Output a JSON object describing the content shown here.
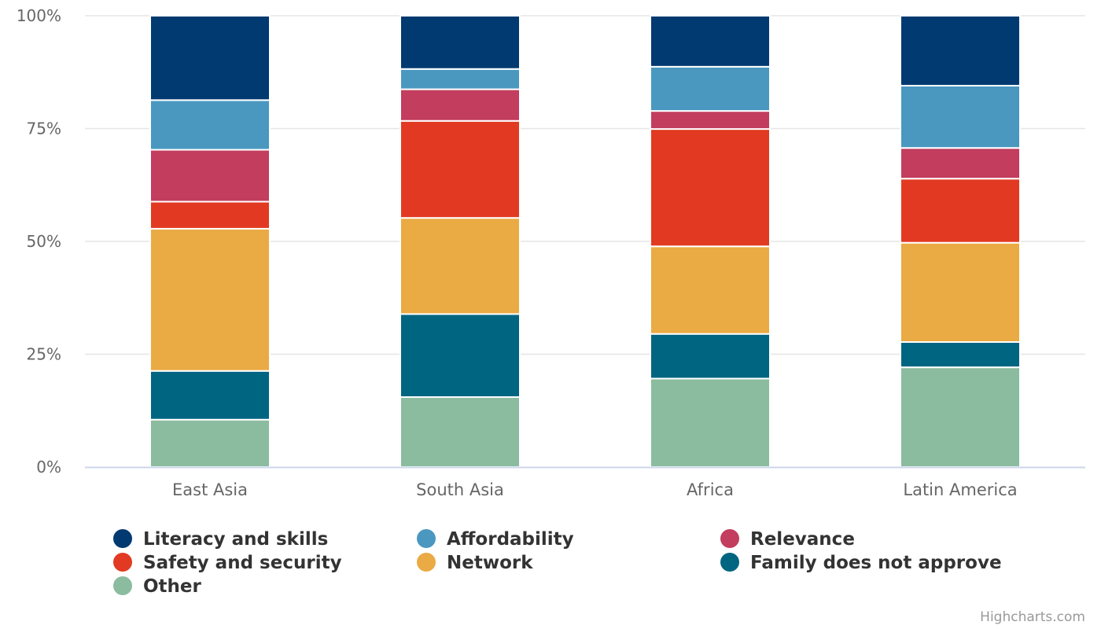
{
  "chart_data": {
    "type": "bar",
    "stacking": "percent",
    "title": "",
    "xlabel": "",
    "ylabel": "",
    "ylim": [
      0,
      100
    ],
    "yticks": [
      "0%",
      "25%",
      "50%",
      "75%",
      "100%"
    ],
    "grid": true,
    "legend_position": "bottom",
    "categories": [
      "East Asia",
      "South Asia",
      "Africa",
      "Latin America"
    ],
    "series": [
      {
        "name": "Literacy and skills",
        "color": "#003a70",
        "values": [
          18.7,
          11.8,
          11.3,
          15.5
        ]
      },
      {
        "name": "Affordability",
        "color": "#4a98c0",
        "values": [
          11.0,
          4.5,
          9.8,
          13.8
        ]
      },
      {
        "name": "Relevance",
        "color": "#c23d5e",
        "values": [
          11.5,
          7.0,
          4.0,
          6.8
        ]
      },
      {
        "name": "Safety and security",
        "color": "#e23a22",
        "values": [
          6.0,
          21.5,
          26.0,
          14.2
        ]
      },
      {
        "name": "Network",
        "color": "#eaaa44",
        "values": [
          31.5,
          21.3,
          19.4,
          22.0
        ]
      },
      {
        "name": "Family does not approve",
        "color": "#006581",
        "values": [
          10.8,
          18.4,
          9.9,
          5.6
        ]
      },
      {
        "name": "Other",
        "color": "#8bbc9f",
        "values": [
          10.5,
          15.5,
          19.6,
          22.1
        ]
      }
    ]
  },
  "credits": "Highcharts.com"
}
